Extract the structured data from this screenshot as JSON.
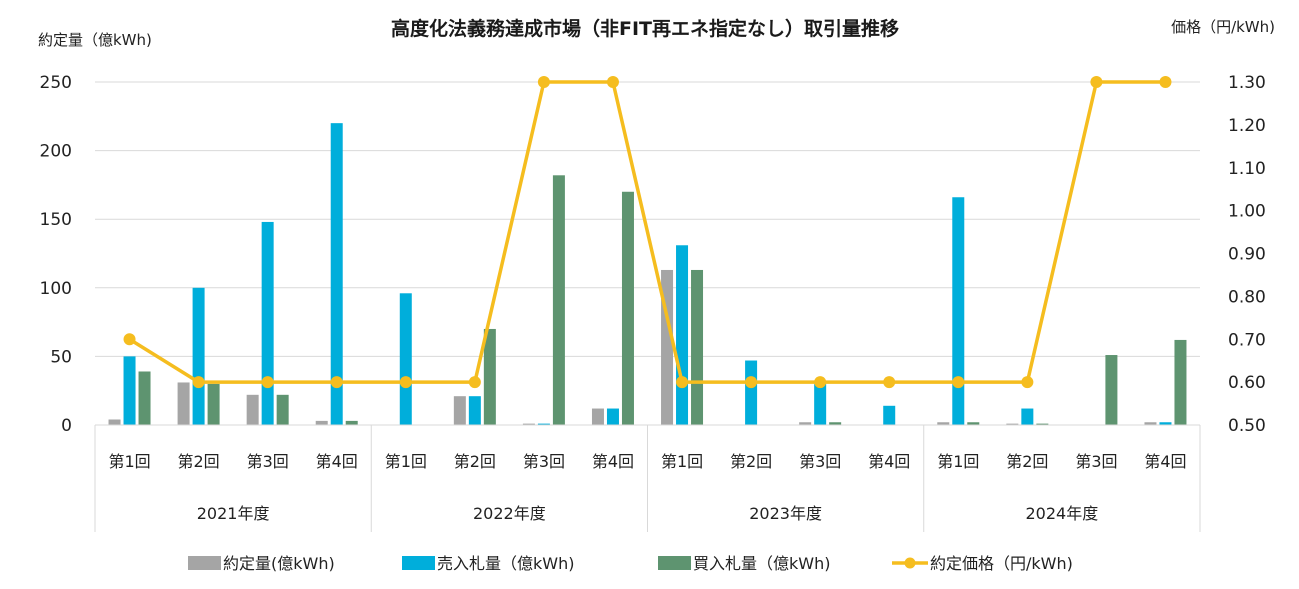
{
  "chart_data": {
    "type": "bar",
    "title": "高度化法義務達成市場（非FIT再エネ指定なし）取引量推移",
    "ylabel_left": "約定量（億kWh)",
    "ylabel_right": "価格（円/kWh)",
    "ylim_left": [
      0,
      250
    ],
    "yticks_left": [
      "0",
      "50",
      "100",
      "150",
      "200",
      "250"
    ],
    "ylim_right": [
      0.5,
      1.3
    ],
    "yticks_right": [
      "0.50",
      "0.60",
      "0.70",
      "0.80",
      "0.90",
      "1.00",
      "1.10",
      "1.20",
      "1.30"
    ],
    "grid": true,
    "groups": [
      {
        "label": "2021年度",
        "categories": [
          "第1回",
          "第2回",
          "第3回",
          "第4回"
        ]
      },
      {
        "label": "2022年度",
        "categories": [
          "第1回",
          "第2回",
          "第3回",
          "第4回"
        ]
      },
      {
        "label": "2023年度",
        "categories": [
          "第1回",
          "第2回",
          "第3回",
          "第4回"
        ]
      },
      {
        "label": "2024年度",
        "categories": [
          "第1回",
          "第2回",
          "第3回",
          "第4回"
        ]
      }
    ],
    "series": [
      {
        "name": "約定量(億kWh)",
        "type": "bar",
        "axis": "left",
        "color": "#A5A5A5",
        "values": [
          4,
          31,
          22,
          3,
          0,
          21,
          1,
          12,
          113,
          0,
          2,
          0,
          2,
          1,
          0,
          2
        ]
      },
      {
        "name": "売入札量（億kWh)",
        "type": "bar",
        "axis": "left",
        "color": "#00AEDB",
        "values": [
          50,
          100,
          148,
          220,
          96,
          21,
          1,
          12,
          131,
          47,
          30,
          14,
          166,
          12,
          0,
          2
        ]
      },
      {
        "name": "買入札量（億kWh)",
        "type": "bar",
        "axis": "left",
        "color": "#5E9470",
        "values": [
          39,
          30,
          22,
          3,
          0,
          70,
          182,
          170,
          113,
          0,
          2,
          0,
          2,
          1,
          51,
          62
        ]
      },
      {
        "name": "約定価格（円/kWh)",
        "type": "line",
        "axis": "right",
        "color": "#F5BD1F",
        "values": [
          0.7,
          0.6,
          0.6,
          0.6,
          0.6,
          0.6,
          1.3,
          1.3,
          0.6,
          0.6,
          0.6,
          0.6,
          0.6,
          0.6,
          1.3,
          1.3
        ]
      }
    ],
    "legend_position": "bottom"
  }
}
